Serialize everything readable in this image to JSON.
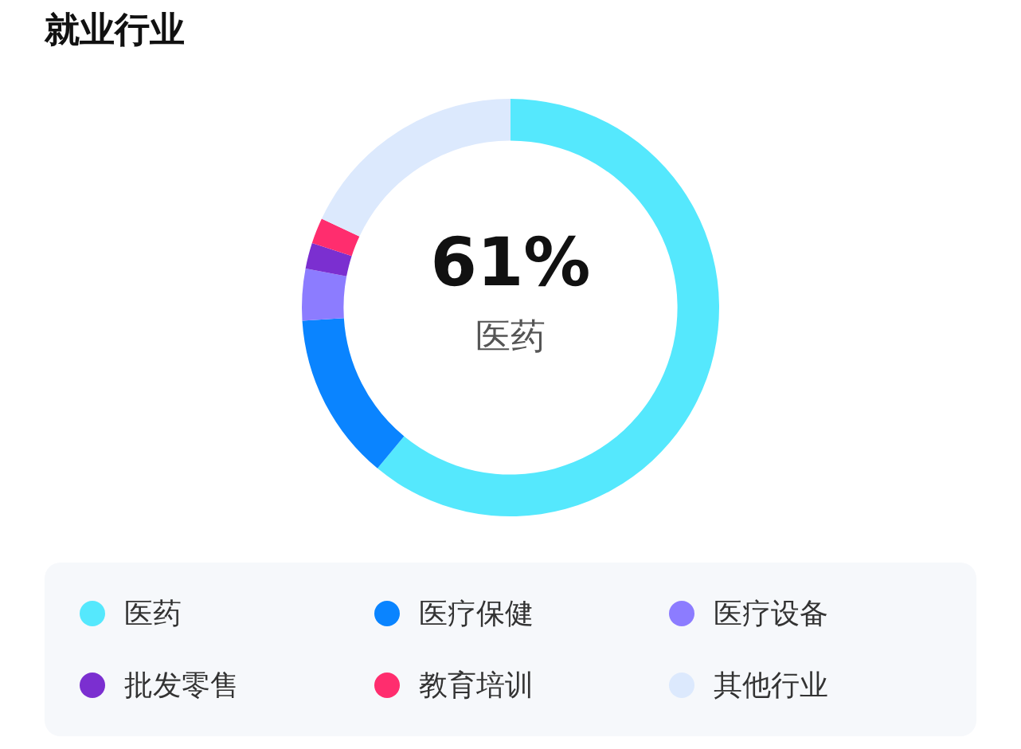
{
  "chart_data": {
    "type": "donut",
    "title": "就业行业",
    "categories": [
      "医药",
      "医疗保健",
      "医疗设备",
      "批发零售",
      "教育培训",
      "其他行业"
    ],
    "values": [
      61,
      13,
      4,
      2,
      2,
      18
    ],
    "colors": [
      "#55e8fd",
      "#0a84ff",
      "#8c7cff",
      "#7b2fd0",
      "#ff2d6e",
      "#dce9fd"
    ],
    "value_labels": [
      "61%",
      null,
      null,
      null,
      null,
      null
    ],
    "legend": "bottom"
  }
}
